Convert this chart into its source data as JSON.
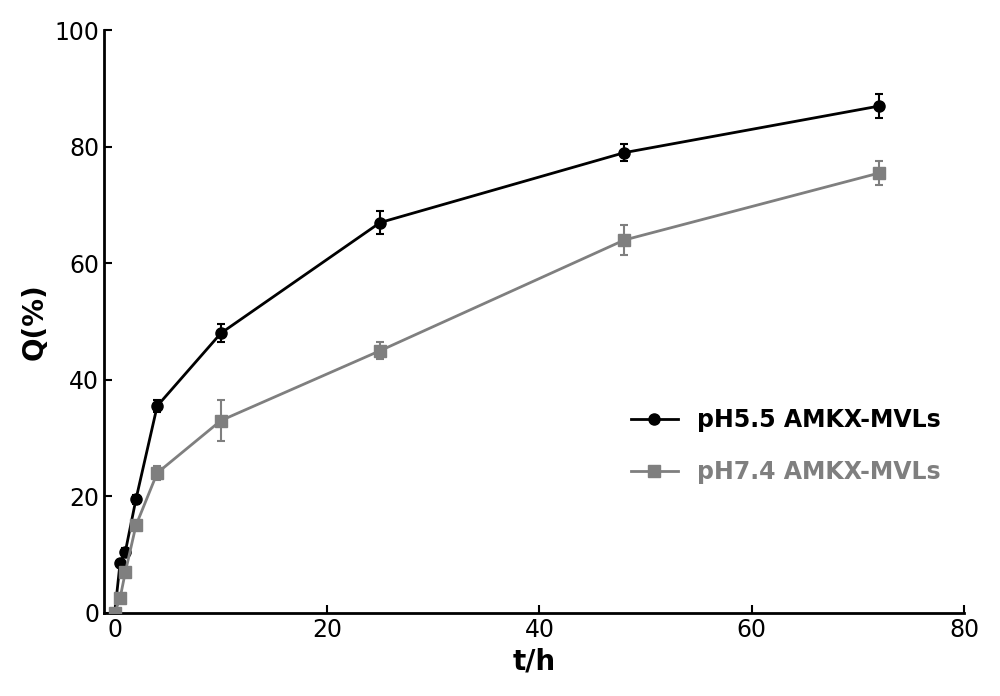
{
  "series1_label": "pH5.5 AMKX-MVLs",
  "series2_label": "pH7.4 AMKX-MVLs",
  "series1_x": [
    0,
    0.5,
    1,
    2,
    4,
    10,
    25,
    48,
    72
  ],
  "series1_y": [
    0,
    8.5,
    10.5,
    19.5,
    35.5,
    48,
    67,
    79,
    87
  ],
  "series1_yerr": [
    0,
    0.5,
    0.6,
    0.8,
    1.0,
    1.5,
    2.0,
    1.5,
    2.0
  ],
  "series2_x": [
    0,
    0.5,
    1,
    2,
    4,
    10,
    25,
    48,
    72
  ],
  "series2_y": [
    0,
    2.5,
    7,
    15,
    24,
    33,
    45,
    64,
    75.5
  ],
  "series2_yerr": [
    0,
    0.4,
    0.6,
    0.8,
    1.2,
    3.5,
    1.5,
    2.5,
    2.0
  ],
  "series1_color": "#000000",
  "series2_color": "#7f7f7f",
  "xlabel": "t/h",
  "ylabel": "Q(%)",
  "xlim": [
    -1,
    80
  ],
  "ylim": [
    0,
    100
  ],
  "xticks": [
    0,
    20,
    40,
    60,
    80
  ],
  "yticks": [
    0,
    20,
    40,
    60,
    80,
    100
  ],
  "xlabel_fontsize": 20,
  "ylabel_fontsize": 20,
  "tick_fontsize": 17,
  "legend_fontsize": 17,
  "legend1_color": "#000000",
  "legend2_color": "#7f7f7f",
  "fig_width": 10.0,
  "fig_height": 6.96,
  "dpi": 100
}
